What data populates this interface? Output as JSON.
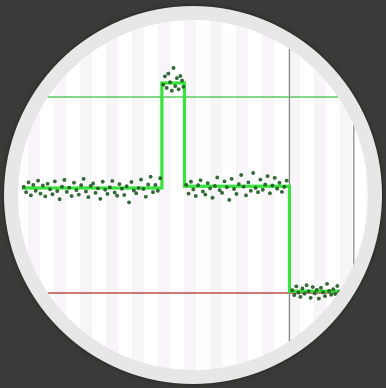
{
  "chart_data": {
    "type": "scatter",
    "title": "",
    "xlabel": "",
    "ylabel": "",
    "grid": false,
    "colors": {
      "background": "#3a3a39",
      "frame": "#e7e7e7",
      "plot_bg": "#ffffff",
      "stripe": "#f2edf3",
      "fit_line": "#39e23c",
      "points": "#1f5a24",
      "threshold_high": "#5cc860",
      "threshold_low": "#b84f4f",
      "marker_line": "#8c8c8c"
    },
    "xlim": [
      0,
      100
    ],
    "ylim": [
      0,
      100
    ],
    "thresholds": [
      {
        "y": 78,
        "color": "#5cc860"
      },
      {
        "y": 22,
        "color": "#b84f4f"
      }
    ],
    "vertical_markers": [
      78.2,
      97.0
    ],
    "fit_segments": [
      {
        "x0": 0.0,
        "x1": 40.9,
        "y": 52.0
      },
      {
        "x0": 40.9,
        "x1": 47.5,
        "y": 82.0
      },
      {
        "x0": 47.5,
        "x1": 78.2,
        "y": 52.5
      },
      {
        "x0": 78.2,
        "x1": 93.0,
        "y": 22.5
      }
    ],
    "series": [
      {
        "points": [
          [
            0.5,
            52.3
          ],
          [
            1.2,
            50.8
          ],
          [
            1.9,
            53.6
          ],
          [
            2.6,
            49.9
          ],
          [
            3.3,
            52.9
          ],
          [
            4.0,
            51.2
          ],
          [
            4.7,
            54.1
          ],
          [
            5.4,
            50.4
          ],
          [
            6.1,
            52.7
          ],
          [
            6.8,
            49.6
          ],
          [
            7.5,
            53.2
          ],
          [
            8.2,
            51.6
          ],
          [
            8.9,
            50.2
          ],
          [
            9.6,
            53.9
          ],
          [
            10.3,
            51.1
          ],
          [
            11.0,
            48.8
          ],
          [
            11.7,
            52.4
          ],
          [
            12.4,
            54.3
          ],
          [
            13.1,
            50.9
          ],
          [
            13.8,
            52.1
          ],
          [
            14.5,
            49.7
          ],
          [
            15.2,
            53.5
          ],
          [
            15.9,
            51.4
          ],
          [
            16.6,
            50.1
          ],
          [
            17.3,
            52.8
          ],
          [
            18.0,
            54.6
          ],
          [
            18.7,
            51.0
          ],
          [
            19.4,
            49.4
          ],
          [
            20.1,
            52.6
          ],
          [
            20.8,
            53.3
          ],
          [
            21.5,
            50.6
          ],
          [
            22.2,
            51.9
          ],
          [
            22.9,
            48.9
          ],
          [
            23.6,
            53.8
          ],
          [
            24.3,
            51.5
          ],
          [
            25.0,
            50.3
          ],
          [
            25.7,
            52.2
          ],
          [
            26.4,
            54.0
          ],
          [
            27.1,
            50.7
          ],
          [
            27.8,
            49.8
          ],
          [
            28.5,
            53.1
          ],
          [
            29.2,
            51.8
          ],
          [
            29.9,
            50.0
          ],
          [
            30.6,
            52.5
          ],
          [
            31.3,
            47.9
          ],
          [
            32.0,
            53.7
          ],
          [
            32.7,
            51.3
          ],
          [
            33.4,
            50.5
          ],
          [
            34.1,
            52.0
          ],
          [
            34.8,
            54.4
          ],
          [
            35.5,
            51.7
          ],
          [
            36.2,
            49.5
          ],
          [
            36.9,
            53.0
          ],
          [
            37.6,
            55.2
          ],
          [
            38.3,
            50.8
          ],
          [
            39.0,
            52.9
          ],
          [
            39.7,
            51.2
          ],
          [
            40.4,
            54.8
          ],
          [
            41.3,
            81.5
          ],
          [
            41.8,
            83.9
          ],
          [
            42.3,
            80.6
          ],
          [
            42.8,
            84.7
          ],
          [
            43.3,
            82.2
          ],
          [
            43.8,
            79.8
          ],
          [
            44.3,
            86.3
          ],
          [
            44.8,
            81.1
          ],
          [
            45.3,
            83.4
          ],
          [
            45.8,
            80.2
          ],
          [
            46.3,
            84.0
          ],
          [
            46.8,
            82.7
          ],
          [
            47.2,
            80.9
          ],
          [
            48.0,
            52.9
          ],
          [
            48.7,
            50.4
          ],
          [
            49.4,
            53.8
          ],
          [
            50.1,
            51.6
          ],
          [
            50.8,
            49.7
          ],
          [
            51.5,
            52.8
          ],
          [
            52.2,
            54.2
          ],
          [
            52.9,
            51.0
          ],
          [
            53.6,
            50.1
          ],
          [
            54.3,
            53.4
          ],
          [
            55.0,
            51.9
          ],
          [
            55.7,
            49.2
          ],
          [
            56.4,
            52.6
          ],
          [
            57.1,
            55.0
          ],
          [
            57.8,
            51.4
          ],
          [
            58.5,
            50.6
          ],
          [
            59.2,
            53.9
          ],
          [
            59.9,
            52.2
          ],
          [
            60.6,
            48.6
          ],
          [
            61.3,
            54.6
          ],
          [
            62.0,
            51.7
          ],
          [
            62.7,
            50.3
          ],
          [
            63.4,
            53.1
          ],
          [
            64.1,
            55.7
          ],
          [
            64.8,
            52.4
          ],
          [
            65.5,
            49.9
          ],
          [
            66.2,
            53.6
          ],
          [
            66.9,
            51.2
          ],
          [
            67.6,
            56.3
          ],
          [
            68.3,
            52.0
          ],
          [
            69.0,
            50.8
          ],
          [
            69.7,
            54.4
          ],
          [
            70.4,
            51.5
          ],
          [
            71.1,
            53.0
          ],
          [
            71.8,
            55.4
          ],
          [
            72.5,
            50.5
          ],
          [
            73.2,
            52.7
          ],
          [
            73.9,
            54.9
          ],
          [
            74.6,
            51.8
          ],
          [
            75.3,
            53.5
          ],
          [
            76.0,
            50.9
          ],
          [
            76.7,
            52.3
          ],
          [
            77.4,
            54.1
          ],
          [
            79.0,
            22.8
          ],
          [
            79.6,
            21.4
          ],
          [
            80.2,
            23.9
          ],
          [
            80.8,
            22.1
          ],
          [
            81.4,
            20.9
          ],
          [
            82.0,
            23.3
          ],
          [
            82.6,
            21.8
          ],
          [
            83.2,
            24.2
          ],
          [
            83.8,
            22.5
          ],
          [
            84.4,
            20.6
          ],
          [
            85.0,
            23.7
          ],
          [
            85.6,
            21.9
          ],
          [
            86.2,
            22.9
          ],
          [
            86.8,
            20.4
          ],
          [
            87.4,
            23.5
          ],
          [
            88.0,
            22.2
          ],
          [
            88.6,
            21.1
          ],
          [
            89.2,
            24.6
          ],
          [
            89.8,
            22.6
          ],
          [
            90.4,
            21.5
          ],
          [
            91.0,
            23.1
          ],
          [
            91.6,
            21.7
          ],
          [
            92.2,
            24.0
          ],
          [
            92.8,
            22.3
          ]
        ]
      }
    ]
  }
}
